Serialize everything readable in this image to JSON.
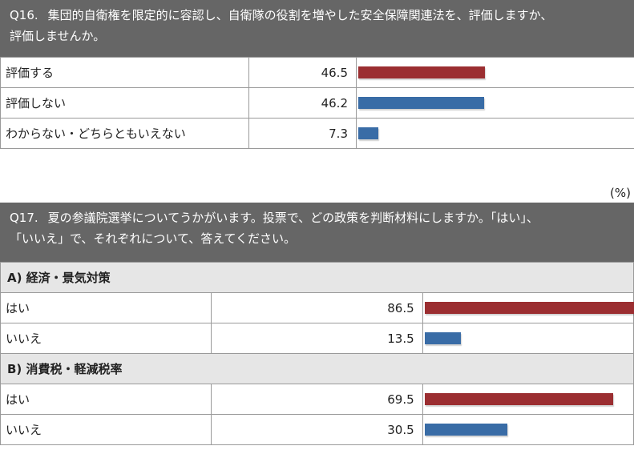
{
  "q16": {
    "number": "Q16.",
    "question_line1": "集団的自衛権を限定的に容認し、自衛隊の役割を増やした安全保障関連法を、評価しますか、",
    "question_line2": "評価しませんか。"
  },
  "q17": {
    "number": "Q17.",
    "question_line1": "夏の参議院選挙についてうかがいます。投票で、どの政策を判断材料にしますか。「はい」、",
    "question_line2": "「いいえ」で、それぞれについて、答えてください。"
  },
  "unit_label": "(%)",
  "colors": {
    "red": "#9b2e31",
    "blue": "#396ca6",
    "header_bg": "#666666",
    "subheader_bg": "#e6e6e6"
  },
  "chart_data": [
    {
      "type": "bar",
      "orientation": "horizontal",
      "question": "Q16",
      "categories": [
        "評価する",
        "評価しない",
        "わからない・どちらともいえない"
      ],
      "values": [
        46.5,
        46.2,
        7.3
      ],
      "value_labels": [
        "46.5",
        "46.2",
        "7.3"
      ],
      "bar_colors": [
        "#9b2e31",
        "#396ca6",
        "#396ca6"
      ],
      "xlim": [
        0,
        100
      ],
      "unit": "%"
    },
    {
      "type": "bar",
      "orientation": "horizontal",
      "question": "Q17",
      "group": "A) 経済・景気対策",
      "categories": [
        "はい",
        "いいえ"
      ],
      "values": [
        86.5,
        13.5
      ],
      "value_labels": [
        "86.5",
        "13.5"
      ],
      "bar_colors": [
        "#9b2e31",
        "#396ca6"
      ],
      "xlim": [
        0,
        100
      ],
      "unit": "%"
    },
    {
      "type": "bar",
      "orientation": "horizontal",
      "question": "Q17",
      "group": "B) 消費税・軽減税率",
      "categories": [
        "はい",
        "いいえ"
      ],
      "values": [
        69.5,
        30.5
      ],
      "value_labels": [
        "69.5",
        "30.5"
      ],
      "bar_colors": [
        "#9b2e31",
        "#396ca6"
      ],
      "xlim": [
        0,
        100
      ],
      "unit": "%"
    }
  ]
}
